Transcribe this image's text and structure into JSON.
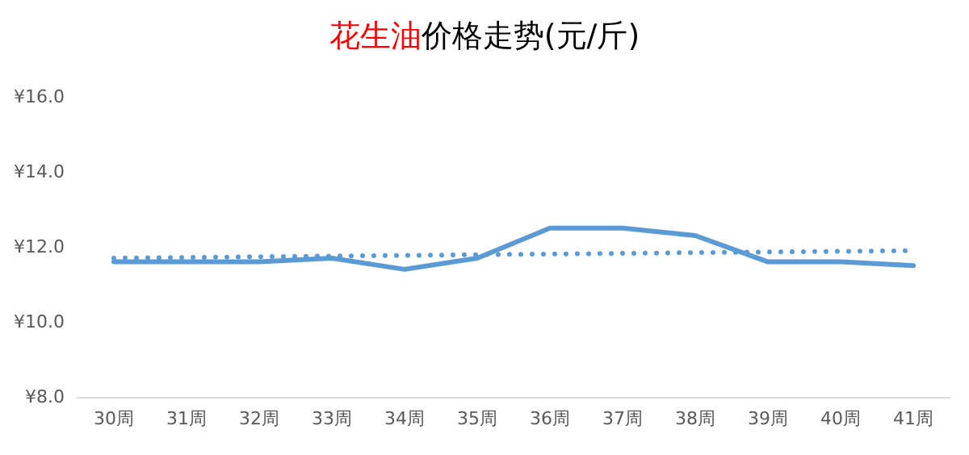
{
  "chart_data": {
    "type": "line",
    "title": "花生油价格走势(元/斤)",
    "categories": [
      "30周",
      "31周",
      "32周",
      "33周",
      "34周",
      "35周",
      "36周",
      "37周",
      "38周",
      "39周",
      "40周",
      "41周"
    ],
    "series": [
      {
        "color": "#5b9bd5",
        "values": [
          11.6,
          11.6,
          11.6,
          11.7,
          11.4,
          11.7,
          12.5,
          12.5,
          12.3,
          11.6,
          11.6,
          11.5
        ],
        "line_style": "solid"
      },
      {
        "type": "line",
        "color": "#5b9bd5",
        "x": [
          "30周",
          "41周"
        ],
        "values": [
          11.7,
          11.9
        ],
        "line_style": "dotted"
      }
    ],
    "ylim": [
      8,
      16
    ],
    "yticks": [
      {
        "value": 8,
        "label": "¥8.0"
      },
      {
        "value": 10,
        "label": "¥10.0"
      },
      {
        "value": 12,
        "label": "¥12.0"
      },
      {
        "value": 14,
        "label": "¥14.0"
      },
      {
        "value": 16,
        "label": "¥16.0"
      }
    ],
    "grid": false,
    "marker": "none"
  }
}
